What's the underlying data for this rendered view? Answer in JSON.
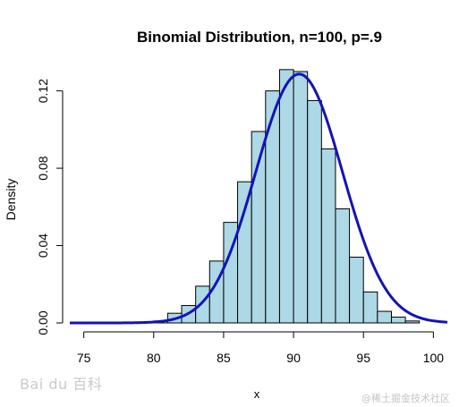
{
  "chart_data": {
    "type": "bar",
    "title": "Binomial Distribution, n=100, p=.9",
    "xlabel": "x",
    "ylabel": "Density",
    "xlim": [
      74,
      101
    ],
    "ylim": [
      0,
      0.13
    ],
    "x_ticks": [
      75,
      80,
      85,
      90,
      95,
      100
    ],
    "y_ticks": [
      "0.00",
      "0.04",
      "0.08",
      "0.12"
    ],
    "bins": [
      {
        "from": 80,
        "to": 81,
        "value": 0.001
      },
      {
        "from": 81,
        "to": 82,
        "value": 0.005
      },
      {
        "from": 82,
        "to": 83,
        "value": 0.009
      },
      {
        "from": 83,
        "to": 84,
        "value": 0.019
      },
      {
        "from": 84,
        "to": 85,
        "value": 0.032
      },
      {
        "from": 85,
        "to": 86,
        "value": 0.052
      },
      {
        "from": 86,
        "to": 87,
        "value": 0.073
      },
      {
        "from": 87,
        "to": 88,
        "value": 0.099
      },
      {
        "from": 88,
        "to": 89,
        "value": 0.12
      },
      {
        "from": 89,
        "to": 90,
        "value": 0.131
      },
      {
        "from": 90,
        "to": 91,
        "value": 0.13
      },
      {
        "from": 91,
        "to": 92,
        "value": 0.115
      },
      {
        "from": 92,
        "to": 93,
        "value": 0.09
      },
      {
        "from": 93,
        "to": 94,
        "value": 0.059
      },
      {
        "from": 94,
        "to": 95,
        "value": 0.034
      },
      {
        "from": 95,
        "to": 96,
        "value": 0.016
      },
      {
        "from": 96,
        "to": 97,
        "value": 0.006
      },
      {
        "from": 97,
        "to": 98,
        "value": 0.003
      },
      {
        "from": 98,
        "to": 99,
        "value": 0.001
      }
    ],
    "density_curve": {
      "type": "normal",
      "mean": 90.4,
      "sd": 3.1,
      "color": "#1414b4",
      "x_range": [
        74,
        101
      ]
    },
    "bar_fill": "#add8e6",
    "bar_stroke": "#000000",
    "grid": false,
    "legend": "none"
  },
  "watermarks": {
    "left": "Bai du 百科",
    "right": "@稀土掘金技术社区"
  }
}
